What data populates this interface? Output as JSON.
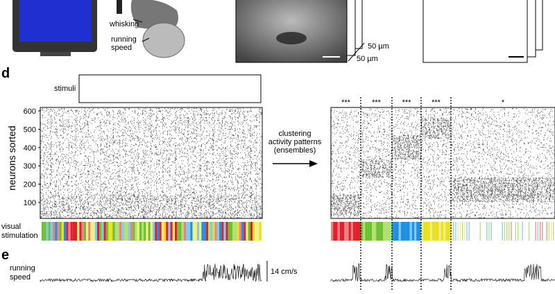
{
  "panel_top": {
    "whisking": "whisking",
    "running_speed": "running\nspeed",
    "scale_1": "50 µm",
    "scale_2": "50 µm"
  },
  "panel_d": {
    "label": "d",
    "stimuli": "stimuli",
    "y_axis_label": "neurons sorted",
    "y_ticks": [
      "600",
      "500",
      "400",
      "300",
      "200",
      "100"
    ],
    "arrow_text": [
      "clustering",
      "activity patterns",
      "(ensembles)"
    ],
    "significance": [
      "***",
      "***",
      "***",
      "***",
      "*"
    ],
    "stim_label": [
      "visual",
      "stimulation"
    ]
  },
  "panel_e": {
    "label": "e",
    "trace_label": [
      "running",
      "speed"
    ],
    "scale": "14 cm/s"
  }
}
